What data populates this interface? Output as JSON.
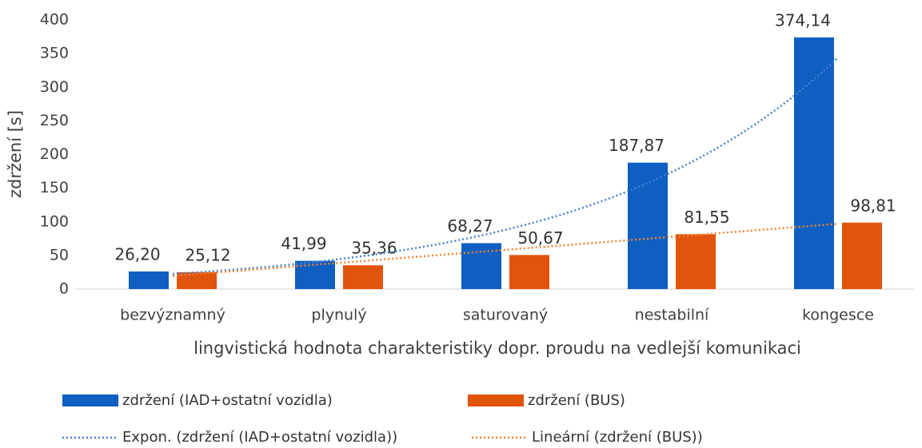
{
  "chart_data": {
    "type": "bar",
    "y_label": "zdržení [s]",
    "x_label": "lingvistická hodnota charakteristiky dopr. proudu na vedlejší komunikaci",
    "categories": [
      "bezvýznamný",
      "plynulý",
      "saturovaný",
      "nestabilní",
      "kongesce"
    ],
    "series": [
      {
        "name": "zdržení (IAD+ostatní vozidla)",
        "color": "#0f5fc2",
        "values": [
          26.2,
          41.99,
          68.27,
          187.87,
          374.14
        ],
        "value_labels": [
          "26,20",
          "41,99",
          "68,27",
          "187,87",
          "374,14"
        ]
      },
      {
        "name": "zdržení (BUS)",
        "color": "#e1540b",
        "values": [
          25.12,
          35.36,
          50.67,
          81.55,
          98.81
        ],
        "value_labels": [
          "25,12",
          "35,36",
          "50,67",
          "81,55",
          "98,81"
        ]
      }
    ],
    "trendlines": [
      {
        "name": "Expon. (zdržení (IAD+ostatní vozidla))",
        "series": 0,
        "fit": "exponential",
        "color": "#4a7fd6"
      },
      {
        "name": "Lineární (zdržení (BUS))",
        "series": 1,
        "fit": "linear",
        "color": "#f08232"
      }
    ],
    "ylim": [
      0,
      400
    ],
    "yticks": [
      0,
      50,
      100,
      150,
      200,
      250,
      300,
      350,
      400
    ],
    "grid": false
  }
}
